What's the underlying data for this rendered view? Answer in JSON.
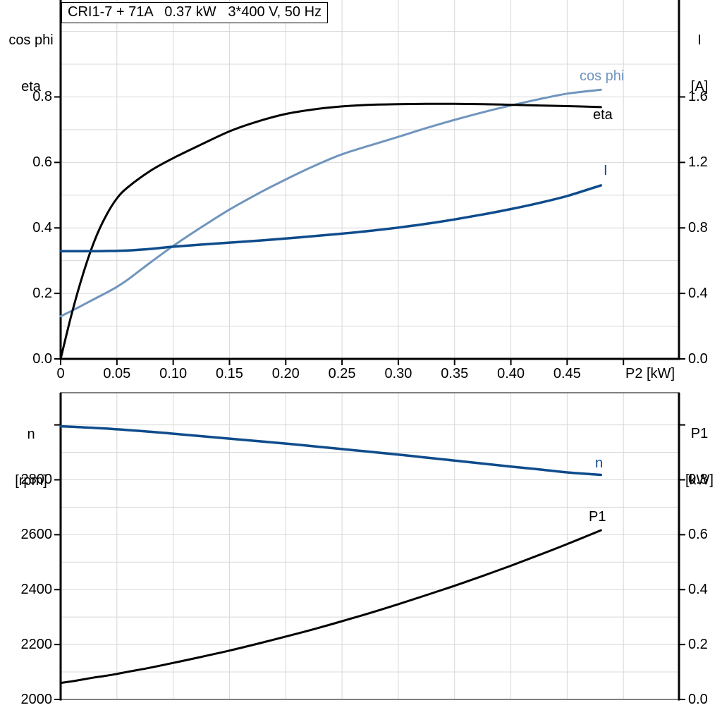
{
  "title": "CRI1-7 + 71A   0.37 kW   3*400 V, 50 Hz",
  "colors": {
    "black": "#000000",
    "dark_blue": "#0e4c8c",
    "light_blue": "#7095bd",
    "grid": "#d8d8d8",
    "frame_gray": "#808080",
    "background": "#ffffff"
  },
  "chart_data": [
    {
      "type": "line",
      "title": "CRI1-7 + 71A   0.37 kW   3*400 V, 50 Hz",
      "xlabel": "P2 [kW]",
      "x_range": [
        0,
        0.55
      ],
      "grid": true,
      "x_ticks": [
        {
          "v": 0,
          "label": "0"
        },
        {
          "v": 0.05,
          "label": "0.05"
        },
        {
          "v": 0.1,
          "label": "0.10"
        },
        {
          "v": 0.15,
          "label": "0.15"
        },
        {
          "v": 0.2,
          "label": "0.20"
        },
        {
          "v": 0.25,
          "label": "0.25"
        },
        {
          "v": 0.3,
          "label": "0.30"
        },
        {
          "v": 0.35,
          "label": "0.35"
        },
        {
          "v": 0.4,
          "label": "0.40"
        },
        {
          "v": 0.45,
          "label": "0.45"
        },
        {
          "v": 0.5,
          "label": ""
        }
      ],
      "left_axis": {
        "title_lines": [
          "cos phi",
          "eta"
        ],
        "range": [
          0,
          1.1
        ],
        "ticks": [
          {
            "v": 0,
            "label": "0.0"
          },
          {
            "v": 0.2,
            "label": "0.2"
          },
          {
            "v": 0.4,
            "label": "0.4"
          },
          {
            "v": 0.6,
            "label": "0.6"
          },
          {
            "v": 0.8,
            "label": "0.8"
          }
        ]
      },
      "right_axis": {
        "title_lines": [
          "I",
          "[A]"
        ],
        "range": [
          0,
          2.2
        ],
        "ticks": [
          {
            "v": 0,
            "label": "0.0"
          },
          {
            "v": 0.4,
            "label": "0.4"
          },
          {
            "v": 0.8,
            "label": "0.8"
          },
          {
            "v": 1.2,
            "label": "1.2"
          },
          {
            "v": 1.6,
            "label": "1.6"
          }
        ]
      },
      "x": [
        0,
        0.01,
        0.02,
        0.03,
        0.04,
        0.05,
        0.06,
        0.08,
        0.1,
        0.125,
        0.15,
        0.175,
        0.2,
        0.225,
        0.25,
        0.275,
        0.3,
        0.325,
        0.35,
        0.375,
        0.4,
        0.425,
        0.45,
        0.48
      ],
      "series": [
        {
          "name": "cos phi",
          "axis": "left",
          "color": "light_blue",
          "width": 3,
          "values": [
            0.13,
            0.147,
            0.165,
            0.183,
            0.201,
            0.22,
            0.243,
            0.295,
            0.345,
            0.402,
            0.456,
            0.504,
            0.548,
            0.589,
            0.625,
            0.652,
            0.678,
            0.705,
            0.73,
            0.753,
            0.774,
            0.793,
            0.81,
            0.822
          ]
        },
        {
          "name": "eta",
          "axis": "left",
          "color": "black",
          "width": 3,
          "values": [
            0,
            0.14,
            0.26,
            0.36,
            0.435,
            0.49,
            0.525,
            0.575,
            0.613,
            0.655,
            0.695,
            0.725,
            0.748,
            0.762,
            0.771,
            0.776,
            0.778,
            0.779,
            0.779,
            0.778,
            0.776,
            0.774,
            0.772,
            0.769
          ]
        },
        {
          "name": "I",
          "axis": "right",
          "color": "dark_blue",
          "width": 3.5,
          "values": [
            0.658,
            0.658,
            0.658,
            0.658,
            0.659,
            0.66,
            0.662,
            0.672,
            0.685,
            0.698,
            0.71,
            0.722,
            0.735,
            0.75,
            0.765,
            0.782,
            0.802,
            0.825,
            0.852,
            0.882,
            0.915,
            0.952,
            0.995,
            1.06
          ]
        }
      ]
    },
    {
      "type": "line",
      "title": "",
      "xlabel": "",
      "x_range": [
        0,
        0.55
      ],
      "grid": true,
      "x_ticks": [],
      "left_axis": {
        "title_lines": [
          "n",
          "[rpm]"
        ],
        "range": [
          2000,
          3117
        ],
        "ticks": [
          {
            "v": 2000,
            "label": "2000"
          },
          {
            "v": 2200,
            "label": "2200"
          },
          {
            "v": 2400,
            "label": "2400"
          },
          {
            "v": 2600,
            "label": "2600"
          },
          {
            "v": 2800,
            "label": "2800"
          },
          {
            "v": 3000,
            "label": ""
          }
        ]
      },
      "right_axis": {
        "title_lines": [
          "P1",
          "[kW]"
        ],
        "range": [
          0,
          1.117
        ],
        "ticks": [
          {
            "v": 0,
            "label": "0.0"
          },
          {
            "v": 0.2,
            "label": "0.2"
          },
          {
            "v": 0.4,
            "label": "0.4"
          },
          {
            "v": 0.6,
            "label": "0.6"
          },
          {
            "v": 0.8,
            "label": "0.8"
          },
          {
            "v": 1,
            "label": ""
          }
        ]
      },
      "x": [
        0,
        0.01,
        0.02,
        0.03,
        0.04,
        0.05,
        0.06,
        0.08,
        0.1,
        0.125,
        0.15,
        0.175,
        0.2,
        0.225,
        0.25,
        0.275,
        0.3,
        0.325,
        0.35,
        0.375,
        0.4,
        0.425,
        0.45,
        0.48
      ],
      "series": [
        {
          "name": "n",
          "axis": "left",
          "color": "dark_blue",
          "width": 3.5,
          "values": [
            2995,
            2993,
            2991,
            2989,
            2987,
            2984,
            2981,
            2975,
            2968,
            2959,
            2950,
            2941,
            2932,
            2922,
            2912,
            2902,
            2892,
            2881,
            2870,
            2859,
            2848,
            2838,
            2827,
            2818
          ]
        },
        {
          "name": "P1",
          "axis": "right",
          "color": "black",
          "width": 3,
          "values": [
            0.06,
            0.066,
            0.073,
            0.08,
            0.086,
            0.093,
            0.101,
            0.116,
            0.133,
            0.155,
            0.178,
            0.203,
            0.229,
            0.256,
            0.285,
            0.315,
            0.347,
            0.38,
            0.414,
            0.45,
            0.487,
            0.526,
            0.566,
            0.616
          ]
        }
      ]
    }
  ]
}
